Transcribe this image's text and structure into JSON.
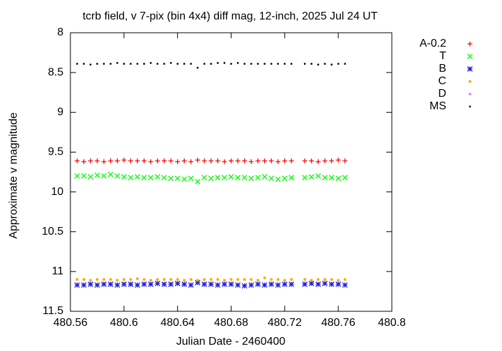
{
  "chart_data": {
    "type": "scatter",
    "title": "tcrb field, v 7-pix (bin 4x4) diff mag, 12-inch, 2025 Jul 24 UT",
    "x_label": "Julian Date - 2460400",
    "y_label": "Approximate v magnitude",
    "xlim": [
      480.56,
      480.8
    ],
    "xticks": [
      480.56,
      480.6,
      480.64,
      480.68,
      480.72,
      480.76,
      480.8
    ],
    "ylim": [
      8,
      11.5
    ],
    "yticks": [
      8,
      8.5,
      9,
      9.5,
      10,
      10.5,
      11,
      11.5
    ],
    "y_reversed": true,
    "grid": false,
    "legend": "outside-right",
    "x": [
      480.565,
      480.57,
      480.575,
      480.58,
      480.585,
      480.59,
      480.595,
      480.6,
      480.605,
      480.61,
      480.615,
      480.62,
      480.625,
      480.63,
      480.635,
      480.64,
      480.645,
      480.65,
      480.655,
      480.66,
      480.665,
      480.67,
      480.675,
      480.68,
      480.685,
      480.69,
      480.695,
      480.7,
      480.705,
      480.71,
      480.715,
      480.72,
      480.725,
      480.73,
      480.735,
      480.74,
      480.745,
      480.75,
      480.755,
      480.76,
      480.765
    ],
    "series": [
      {
        "name": "A-0.2",
        "color": "#ff0000",
        "marker": "plus",
        "values": [
          9.61,
          9.62,
          9.61,
          9.61,
          9.62,
          9.61,
          9.61,
          9.6,
          9.61,
          9.61,
          9.61,
          9.62,
          9.61,
          9.61,
          9.61,
          9.62,
          9.61,
          9.62,
          9.6,
          9.61,
          9.61,
          9.61,
          9.62,
          9.61,
          9.61,
          9.61,
          9.62,
          9.61,
          9.61,
          9.61,
          9.62,
          9.61,
          9.61,
          null,
          9.61,
          9.61,
          9.62,
          9.61,
          9.61,
          9.6,
          9.61
        ]
      },
      {
        "name": "T",
        "color": "#00ff00",
        "marker": "cross",
        "values": [
          9.8,
          9.8,
          9.81,
          9.79,
          9.8,
          9.78,
          9.8,
          9.81,
          9.82,
          9.81,
          9.82,
          9.82,
          9.81,
          9.82,
          9.83,
          9.83,
          9.84,
          9.83,
          9.87,
          9.82,
          9.83,
          9.82,
          9.82,
          9.81,
          9.82,
          9.82,
          9.83,
          9.82,
          9.81,
          9.83,
          9.84,
          9.83,
          9.82,
          null,
          9.82,
          9.81,
          9.8,
          9.82,
          9.82,
          9.83,
          9.82
        ]
      },
      {
        "name": "B",
        "color": "#2020e0",
        "marker": "star",
        "values": [
          11.17,
          11.17,
          11.16,
          11.17,
          11.16,
          11.16,
          11.17,
          11.16,
          11.16,
          11.17,
          11.16,
          11.16,
          11.15,
          11.16,
          11.16,
          11.15,
          11.16,
          11.17,
          11.14,
          11.16,
          11.16,
          11.17,
          11.16,
          11.16,
          11.17,
          11.18,
          11.17,
          11.16,
          11.17,
          11.16,
          11.17,
          11.16,
          11.16,
          null,
          11.16,
          11.15,
          11.16,
          11.15,
          11.16,
          11.16,
          11.17
        ]
      },
      {
        "name": "C",
        "color": "#ffa500",
        "marker": "square",
        "values": [
          11.1,
          11.1,
          11.11,
          11.1,
          11.1,
          11.1,
          11.11,
          11.1,
          11.1,
          11.09,
          11.1,
          11.11,
          11.1,
          11.1,
          11.1,
          11.1,
          11.11,
          11.1,
          11.11,
          11.1,
          11.1,
          11.1,
          11.11,
          11.1,
          11.1,
          11.1,
          11.1,
          11.11,
          11.08,
          11.1,
          11.1,
          11.11,
          11.1,
          null,
          11.1,
          11.11,
          11.1,
          11.1,
          11.1,
          11.11,
          11.1
        ]
      },
      {
        "name": "D",
        "color": "#ee82ee",
        "marker": "square",
        "values": [
          null,
          null,
          null,
          null,
          null,
          null,
          null,
          null,
          null,
          null,
          null,
          null,
          null,
          null,
          null,
          null,
          null,
          null,
          null,
          null,
          null,
          null,
          null,
          null,
          null,
          null,
          null,
          null,
          null,
          null,
          null,
          null,
          null,
          null,
          null,
          null,
          null,
          null,
          null,
          null,
          null
        ]
      },
      {
        "name": "MS",
        "color": "#000000",
        "marker": "dot",
        "values": [
          8.39,
          8.39,
          8.4,
          8.39,
          8.39,
          8.39,
          8.38,
          8.39,
          8.39,
          8.39,
          8.39,
          8.38,
          8.39,
          8.39,
          8.38,
          8.39,
          8.39,
          8.39,
          8.44,
          8.39,
          8.39,
          8.38,
          8.38,
          8.39,
          8.38,
          8.39,
          8.39,
          8.39,
          8.39,
          8.39,
          8.39,
          8.39,
          8.39,
          null,
          8.39,
          8.39,
          8.4,
          8.39,
          8.4,
          8.39,
          8.39
        ]
      }
    ]
  }
}
